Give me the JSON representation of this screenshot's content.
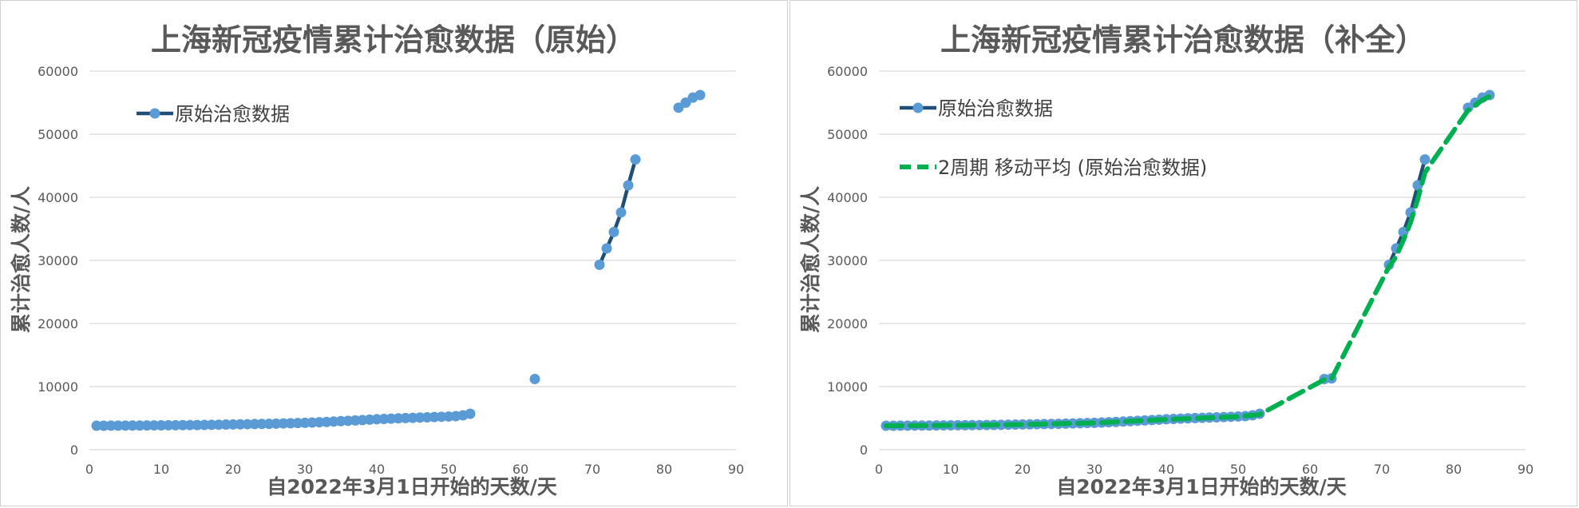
{
  "chart_data": [
    {
      "type": "line",
      "title": "上海新冠疫情累计治愈数据（原始）",
      "xlabel": "自2022年3月1日开始的天数/天",
      "ylabel": "累计治愈人数/人",
      "xlim": [
        0,
        90
      ],
      "ylim": [
        0,
        60000
      ],
      "xticks": [
        0,
        10,
        20,
        30,
        40,
        50,
        60,
        70,
        80,
        90
      ],
      "yticks": [
        0,
        10000,
        20000,
        30000,
        40000,
        50000,
        60000
      ],
      "grid": true,
      "legend_position": "top-left",
      "legend": [
        "原始治愈数据"
      ],
      "series": [
        {
          "name": "原始治愈数据",
          "line_color": "#1f4e79",
          "marker_color": "#5b9bd5",
          "segments": [
            [
              [
                1,
                3800
              ],
              [
                2,
                3800
              ],
              [
                3,
                3810
              ],
              [
                4,
                3815
              ],
              [
                5,
                3820
              ],
              [
                6,
                3825
              ],
              [
                7,
                3830
              ],
              [
                8,
                3840
              ],
              [
                9,
                3850
              ],
              [
                10,
                3860
              ],
              [
                11,
                3870
              ],
              [
                12,
                3880
              ],
              [
                13,
                3890
              ],
              [
                14,
                3900
              ],
              [
                15,
                3910
              ],
              [
                16,
                3920
              ],
              [
                17,
                3940
              ],
              [
                18,
                3960
              ],
              [
                19,
                3980
              ],
              [
                20,
                4000
              ],
              [
                21,
                4020
              ],
              [
                22,
                4040
              ],
              [
                23,
                4060
              ],
              [
                24,
                4080
              ],
              [
                25,
                4100
              ],
              [
                26,
                4130
              ],
              [
                27,
                4160
              ],
              [
                28,
                4190
              ],
              [
                29,
                4220
              ],
              [
                30,
                4260
              ],
              [
                31,
                4300
              ],
              [
                32,
                4350
              ],
              [
                33,
                4400
              ],
              [
                34,
                4460
              ],
              [
                35,
                4520
              ],
              [
                36,
                4580
              ],
              [
                37,
                4640
              ],
              [
                38,
                4700
              ],
              [
                39,
                4760
              ],
              [
                40,
                4820
              ],
              [
                41,
                4870
              ],
              [
                42,
                4920
              ],
              [
                43,
                4970
              ],
              [
                44,
                5010
              ],
              [
                45,
                5050
              ],
              [
                46,
                5090
              ],
              [
                47,
                5130
              ],
              [
                48,
                5170
              ],
              [
                49,
                5210
              ],
              [
                50,
                5260
              ],
              [
                51,
                5320
              ],
              [
                52,
                5450
              ],
              [
                53,
                5700
              ]
            ],
            [
              [
                62,
                11200
              ]
            ],
            [
              [
                71,
                29300
              ],
              [
                72,
                31900
              ],
              [
                73,
                34500
              ],
              [
                74,
                37600
              ],
              [
                75,
                41900
              ],
              [
                76,
                46000
              ]
            ],
            [
              [
                82,
                54200
              ],
              [
                83,
                55000
              ],
              [
                84,
                55800
              ],
              [
                85,
                56200
              ]
            ]
          ]
        }
      ]
    },
    {
      "type": "line",
      "title": "上海新冠疫情累计治愈数据（补全）",
      "xlabel": "自2022年3月1日开始的天数/天",
      "ylabel": "累计治愈人数/人",
      "xlim": [
        0,
        90
      ],
      "ylim": [
        0,
        60000
      ],
      "xticks": [
        0,
        10,
        20,
        30,
        40,
        50,
        60,
        70,
        80,
        90
      ],
      "yticks": [
        0,
        10000,
        20000,
        30000,
        40000,
        50000,
        60000
      ],
      "grid": true,
      "legend_position": "top-left",
      "legend": [
        "原始治愈数据",
        "2周期 移动平均 (原始治愈数据)"
      ],
      "series": [
        {
          "name": "原始治愈数据",
          "line_color": "#1f4e79",
          "marker_color": "#5b9bd5",
          "segments": [
            [
              [
                1,
                3800
              ],
              [
                2,
                3800
              ],
              [
                3,
                3810
              ],
              [
                4,
                3815
              ],
              [
                5,
                3820
              ],
              [
                6,
                3825
              ],
              [
                7,
                3830
              ],
              [
                8,
                3840
              ],
              [
                9,
                3850
              ],
              [
                10,
                3860
              ],
              [
                11,
                3870
              ],
              [
                12,
                3880
              ],
              [
                13,
                3890
              ],
              [
                14,
                3900
              ],
              [
                15,
                3910
              ],
              [
                16,
                3920
              ],
              [
                17,
                3940
              ],
              [
                18,
                3960
              ],
              [
                19,
                3980
              ],
              [
                20,
                4000
              ],
              [
                21,
                4020
              ],
              [
                22,
                4040
              ],
              [
                23,
                4060
              ],
              [
                24,
                4080
              ],
              [
                25,
                4100
              ],
              [
                26,
                4130
              ],
              [
                27,
                4160
              ],
              [
                28,
                4190
              ],
              [
                29,
                4220
              ],
              [
                30,
                4260
              ],
              [
                31,
                4300
              ],
              [
                32,
                4350
              ],
              [
                33,
                4400
              ],
              [
                34,
                4460
              ],
              [
                35,
                4520
              ],
              [
                36,
                4580
              ],
              [
                37,
                4640
              ],
              [
                38,
                4700
              ],
              [
                39,
                4760
              ],
              [
                40,
                4820
              ],
              [
                41,
                4870
              ],
              [
                42,
                4920
              ],
              [
                43,
                4970
              ],
              [
                44,
                5010
              ],
              [
                45,
                5050
              ],
              [
                46,
                5090
              ],
              [
                47,
                5130
              ],
              [
                48,
                5170
              ],
              [
                49,
                5210
              ],
              [
                50,
                5260
              ],
              [
                51,
                5320
              ],
              [
                52,
                5450
              ],
              [
                53,
                5700
              ]
            ],
            [
              [
                62,
                11200
              ],
              [
                63,
                11300
              ]
            ],
            [
              [
                71,
                29300
              ],
              [
                72,
                31900
              ],
              [
                73,
                34500
              ],
              [
                74,
                37600
              ],
              [
                75,
                41900
              ],
              [
                76,
                46000
              ]
            ],
            [
              [
                82,
                54200
              ],
              [
                83,
                55000
              ],
              [
                84,
                55800
              ],
              [
                85,
                56200
              ]
            ]
          ]
        },
        {
          "name": "2周期 移动平均 (原始治愈数据)",
          "line_color": "#00b050",
          "dashed": true,
          "points": [
            [
              1,
              3800
            ],
            [
              10,
              3855
            ],
            [
              20,
              3990
            ],
            [
              30,
              4240
            ],
            [
              40,
              4790
            ],
            [
              50,
              5235
            ],
            [
              53,
              5575
            ],
            [
              62,
              11100
            ],
            [
              63,
              11250
            ],
            [
              71,
              29000
            ],
            [
              72,
              30600
            ],
            [
              73,
              33200
            ],
            [
              74,
              36000
            ],
            [
              75,
              39700
            ],
            [
              76,
              43900
            ],
            [
              77,
              45600
            ],
            [
              82,
              53800
            ],
            [
              83,
              54600
            ],
            [
              84,
              55400
            ],
            [
              85,
              56000
            ]
          ]
        }
      ]
    }
  ]
}
